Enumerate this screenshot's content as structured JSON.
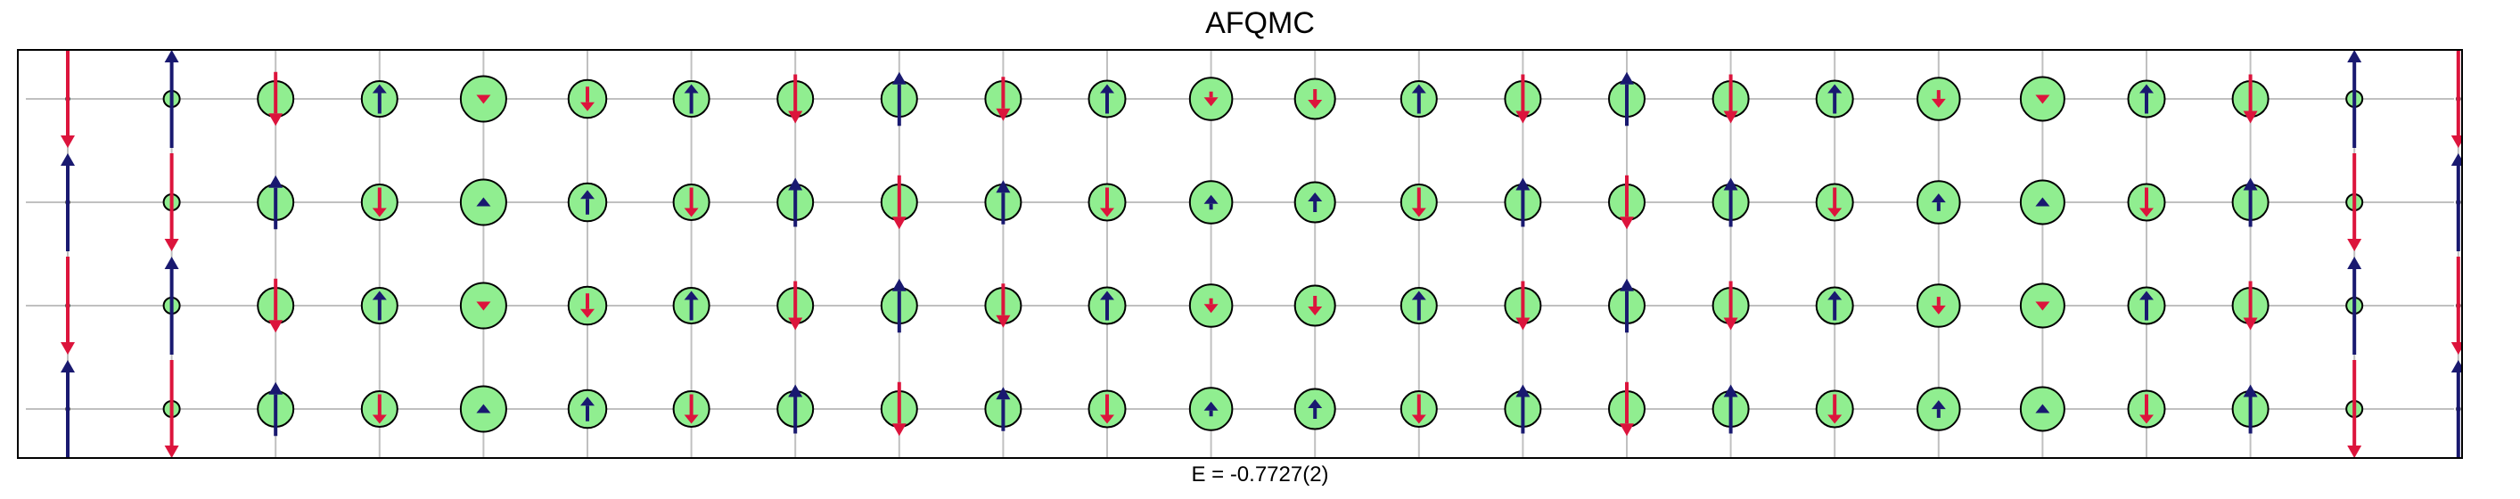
{
  "chart_data": {
    "type": "spin-lattice",
    "title": "AFQMC",
    "xlabel": "E = -0.7727(2)",
    "energy_label": "E = -0.7727(2)",
    "rows": 4,
    "columns": 24,
    "grid": true,
    "colors": {
      "up": "#191970",
      "down": "#dc143c",
      "hole_fill": "#90ee90",
      "grid": "#c0c0c0",
      "frame": "#000000"
    },
    "spin_scale_note": "s = signed local spin (positive = up / navy, negative = down / crimson); h = hole density (circle size), both in units of 1",
    "sites": [
      [
        {
          "h": 0.0,
          "s": -1.0
        },
        {
          "h": 0.03,
          "s": 1.0
        },
        {
          "h": 0.4,
          "s": -0.55
        },
        {
          "h": 0.4,
          "s": 0.3
        },
        {
          "h": 0.62,
          "s": -0.1
        },
        {
          "h": 0.45,
          "s": -0.25
        },
        {
          "h": 0.4,
          "s": 0.3
        },
        {
          "h": 0.4,
          "s": -0.5
        },
        {
          "h": 0.4,
          "s": 0.55
        },
        {
          "h": 0.4,
          "s": -0.45
        },
        {
          "h": 0.42,
          "s": 0.3
        },
        {
          "h": 0.55,
          "s": -0.15
        },
        {
          "h": 0.5,
          "s": -0.2
        },
        {
          "h": 0.4,
          "s": 0.3
        },
        {
          "h": 0.4,
          "s": -0.5
        },
        {
          "h": 0.4,
          "s": 0.55
        },
        {
          "h": 0.4,
          "s": -0.5
        },
        {
          "h": 0.42,
          "s": 0.3
        },
        {
          "h": 0.55,
          "s": -0.18
        },
        {
          "h": 0.58,
          "s": -0.1
        },
        {
          "h": 0.42,
          "s": 0.3
        },
        {
          "h": 0.4,
          "s": -0.5
        },
        {
          "h": 0.03,
          "s": 1.0
        },
        {
          "h": 0.0,
          "s": -1.0
        }
      ],
      [
        {
          "h": 0.0,
          "s": 1.0
        },
        {
          "h": 0.03,
          "s": -1.0
        },
        {
          "h": 0.4,
          "s": 0.55
        },
        {
          "h": 0.4,
          "s": -0.3
        },
        {
          "h": 0.62,
          "s": 0.1
        },
        {
          "h": 0.45,
          "s": 0.25
        },
        {
          "h": 0.4,
          "s": -0.3
        },
        {
          "h": 0.4,
          "s": 0.5
        },
        {
          "h": 0.4,
          "s": -0.55
        },
        {
          "h": 0.4,
          "s": 0.45
        },
        {
          "h": 0.42,
          "s": -0.3
        },
        {
          "h": 0.55,
          "s": 0.15
        },
        {
          "h": 0.5,
          "s": 0.2
        },
        {
          "h": 0.4,
          "s": -0.3
        },
        {
          "h": 0.4,
          "s": 0.5
        },
        {
          "h": 0.4,
          "s": -0.55
        },
        {
          "h": 0.4,
          "s": 0.5
        },
        {
          "h": 0.42,
          "s": -0.3
        },
        {
          "h": 0.55,
          "s": 0.18
        },
        {
          "h": 0.58,
          "s": 0.1
        },
        {
          "h": 0.42,
          "s": -0.3
        },
        {
          "h": 0.4,
          "s": 0.5
        },
        {
          "h": 0.03,
          "s": -1.0
        },
        {
          "h": 0.0,
          "s": 1.0
        }
      ],
      [
        {
          "h": 0.0,
          "s": -1.0
        },
        {
          "h": 0.03,
          "s": 1.0
        },
        {
          "h": 0.4,
          "s": -0.55
        },
        {
          "h": 0.4,
          "s": 0.3
        },
        {
          "h": 0.62,
          "s": -0.1
        },
        {
          "h": 0.45,
          "s": -0.25
        },
        {
          "h": 0.4,
          "s": 0.3
        },
        {
          "h": 0.4,
          "s": -0.5
        },
        {
          "h": 0.4,
          "s": 0.55
        },
        {
          "h": 0.4,
          "s": -0.45
        },
        {
          "h": 0.42,
          "s": 0.3
        },
        {
          "h": 0.55,
          "s": -0.15
        },
        {
          "h": 0.5,
          "s": -0.2
        },
        {
          "h": 0.4,
          "s": 0.3
        },
        {
          "h": 0.4,
          "s": -0.5
        },
        {
          "h": 0.4,
          "s": 0.55
        },
        {
          "h": 0.4,
          "s": -0.5
        },
        {
          "h": 0.42,
          "s": 0.3
        },
        {
          "h": 0.55,
          "s": -0.18
        },
        {
          "h": 0.58,
          "s": -0.1
        },
        {
          "h": 0.42,
          "s": 0.3
        },
        {
          "h": 0.4,
          "s": -0.5
        },
        {
          "h": 0.03,
          "s": 1.0
        },
        {
          "h": 0.0,
          "s": -1.0
        }
      ],
      [
        {
          "h": 0.0,
          "s": 1.0
        },
        {
          "h": 0.03,
          "s": -1.0
        },
        {
          "h": 0.4,
          "s": 0.55
        },
        {
          "h": 0.4,
          "s": -0.3
        },
        {
          "h": 0.62,
          "s": 0.1
        },
        {
          "h": 0.45,
          "s": 0.25
        },
        {
          "h": 0.4,
          "s": -0.3
        },
        {
          "h": 0.4,
          "s": 0.5
        },
        {
          "h": 0.4,
          "s": -0.55
        },
        {
          "h": 0.4,
          "s": 0.45
        },
        {
          "h": 0.42,
          "s": -0.3
        },
        {
          "h": 0.55,
          "s": 0.15
        },
        {
          "h": 0.5,
          "s": 0.2
        },
        {
          "h": 0.4,
          "s": -0.3
        },
        {
          "h": 0.4,
          "s": 0.5
        },
        {
          "h": 0.4,
          "s": -0.55
        },
        {
          "h": 0.4,
          "s": 0.5
        },
        {
          "h": 0.42,
          "s": -0.3
        },
        {
          "h": 0.55,
          "s": 0.18
        },
        {
          "h": 0.58,
          "s": 0.1
        },
        {
          "h": 0.42,
          "s": -0.3
        },
        {
          "h": 0.4,
          "s": 0.5
        },
        {
          "h": 0.03,
          "s": -1.0
        },
        {
          "h": 0.0,
          "s": 1.0
        }
      ]
    ]
  }
}
